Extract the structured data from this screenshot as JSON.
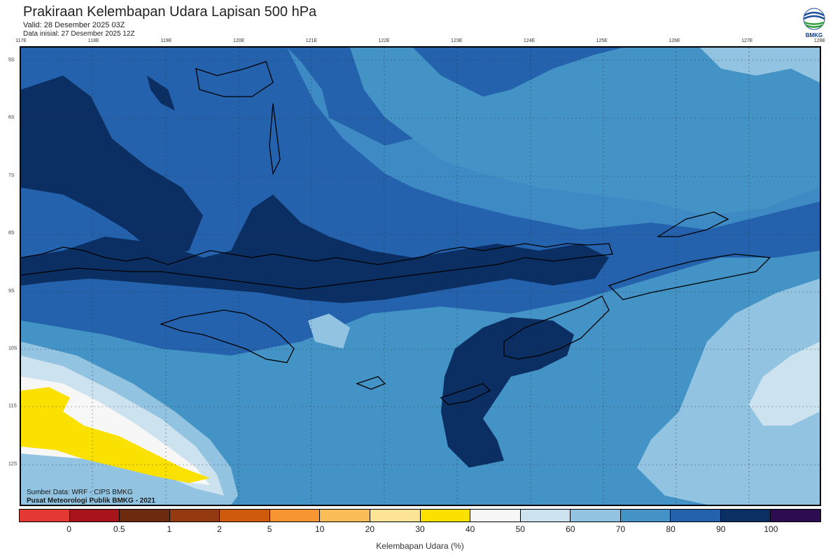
{
  "header": {
    "title": "Prakiraan Kelembapan Udara Lapisan 500 hPa",
    "valid": "Valid: 28 Desember 2025 03Z",
    "init": "Data inisial: 27 Desember 2025 12Z"
  },
  "logo": {
    "text": "BMKG",
    "icon": "bmkg-logo-icon"
  },
  "axes": {
    "longitudes": [
      "117E",
      "118E",
      "119E",
      "120E",
      "121E",
      "122E",
      "123E",
      "124E",
      "125E",
      "126E",
      "127E",
      "128E"
    ],
    "latitudes": [
      "5S",
      "6S",
      "7S",
      "8S",
      "9S",
      "10S",
      "11S",
      "12S"
    ]
  },
  "footer": {
    "source_line1": "Sumber Data: WRF - CIPS BMKG",
    "source_line2": "Pusat Meteorologi Publik BMKG - 2021"
  },
  "legend": {
    "title": "Kelembapan Udara (%)",
    "colors": [
      "#e23a32",
      "#a8141c",
      "#6e2a0e",
      "#953a10",
      "#d05a0c",
      "#f69531",
      "#fbbd56",
      "#fde494",
      "#fae100",
      "#f7f7f7",
      "#cde2ef",
      "#92c3e0",
      "#4393c6",
      "#2462ad",
      "#0b2f63",
      "#2d0d52"
    ],
    "labels": [
      "0",
      "0.5",
      "1",
      "2",
      "5",
      "10",
      "20",
      "30",
      "40",
      "50",
      "60",
      "70",
      "80",
      "90",
      "100"
    ]
  }
}
